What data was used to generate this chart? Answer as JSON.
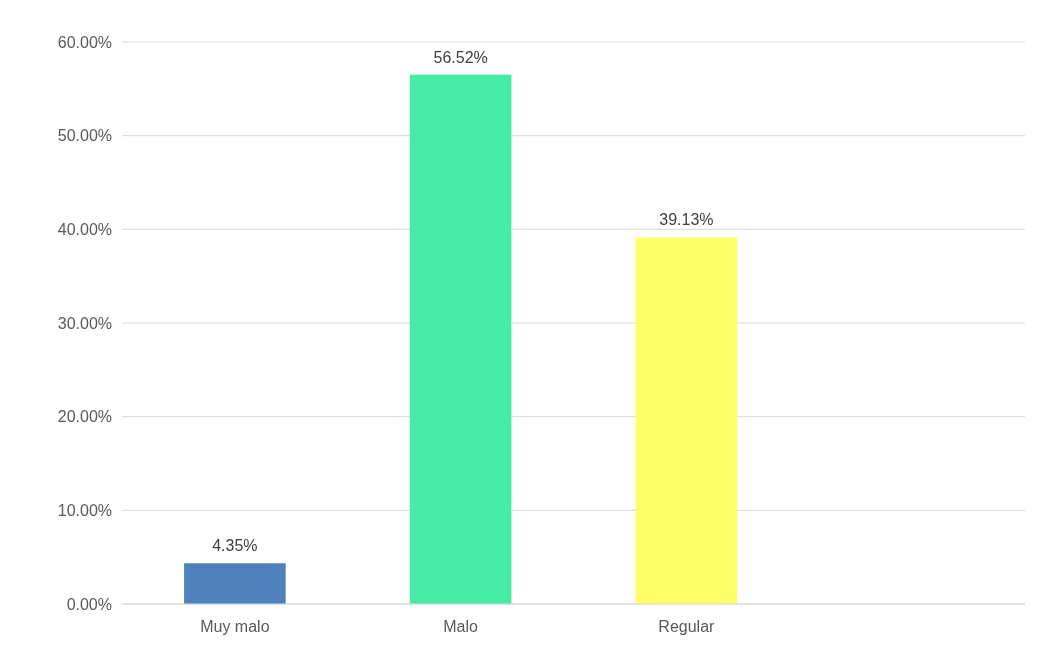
{
  "chart_data": {
    "type": "bar",
    "categories": [
      "Muy malo",
      "Malo",
      "Regular",
      null
    ],
    "values": [
      4.35,
      56.52,
      39.13,
      null
    ],
    "colors": [
      "#4f81bd",
      "#46eba6",
      "#ffff66",
      null
    ],
    "value_labels": [
      "4.35%",
      "56.52%",
      "39.13%",
      null
    ],
    "ylim": [
      0,
      60
    ],
    "yticks": [
      {
        "value": 0,
        "label": "0.00%"
      },
      {
        "value": 10,
        "label": "10.00%"
      },
      {
        "value": 20,
        "label": "20.00%"
      },
      {
        "value": 30,
        "label": "30.00%"
      },
      {
        "value": 40,
        "label": "40.00%"
      },
      {
        "value": 50,
        "label": "50.00%"
      },
      {
        "value": 60,
        "label": "60.00%"
      }
    ],
    "grid": "y"
  }
}
